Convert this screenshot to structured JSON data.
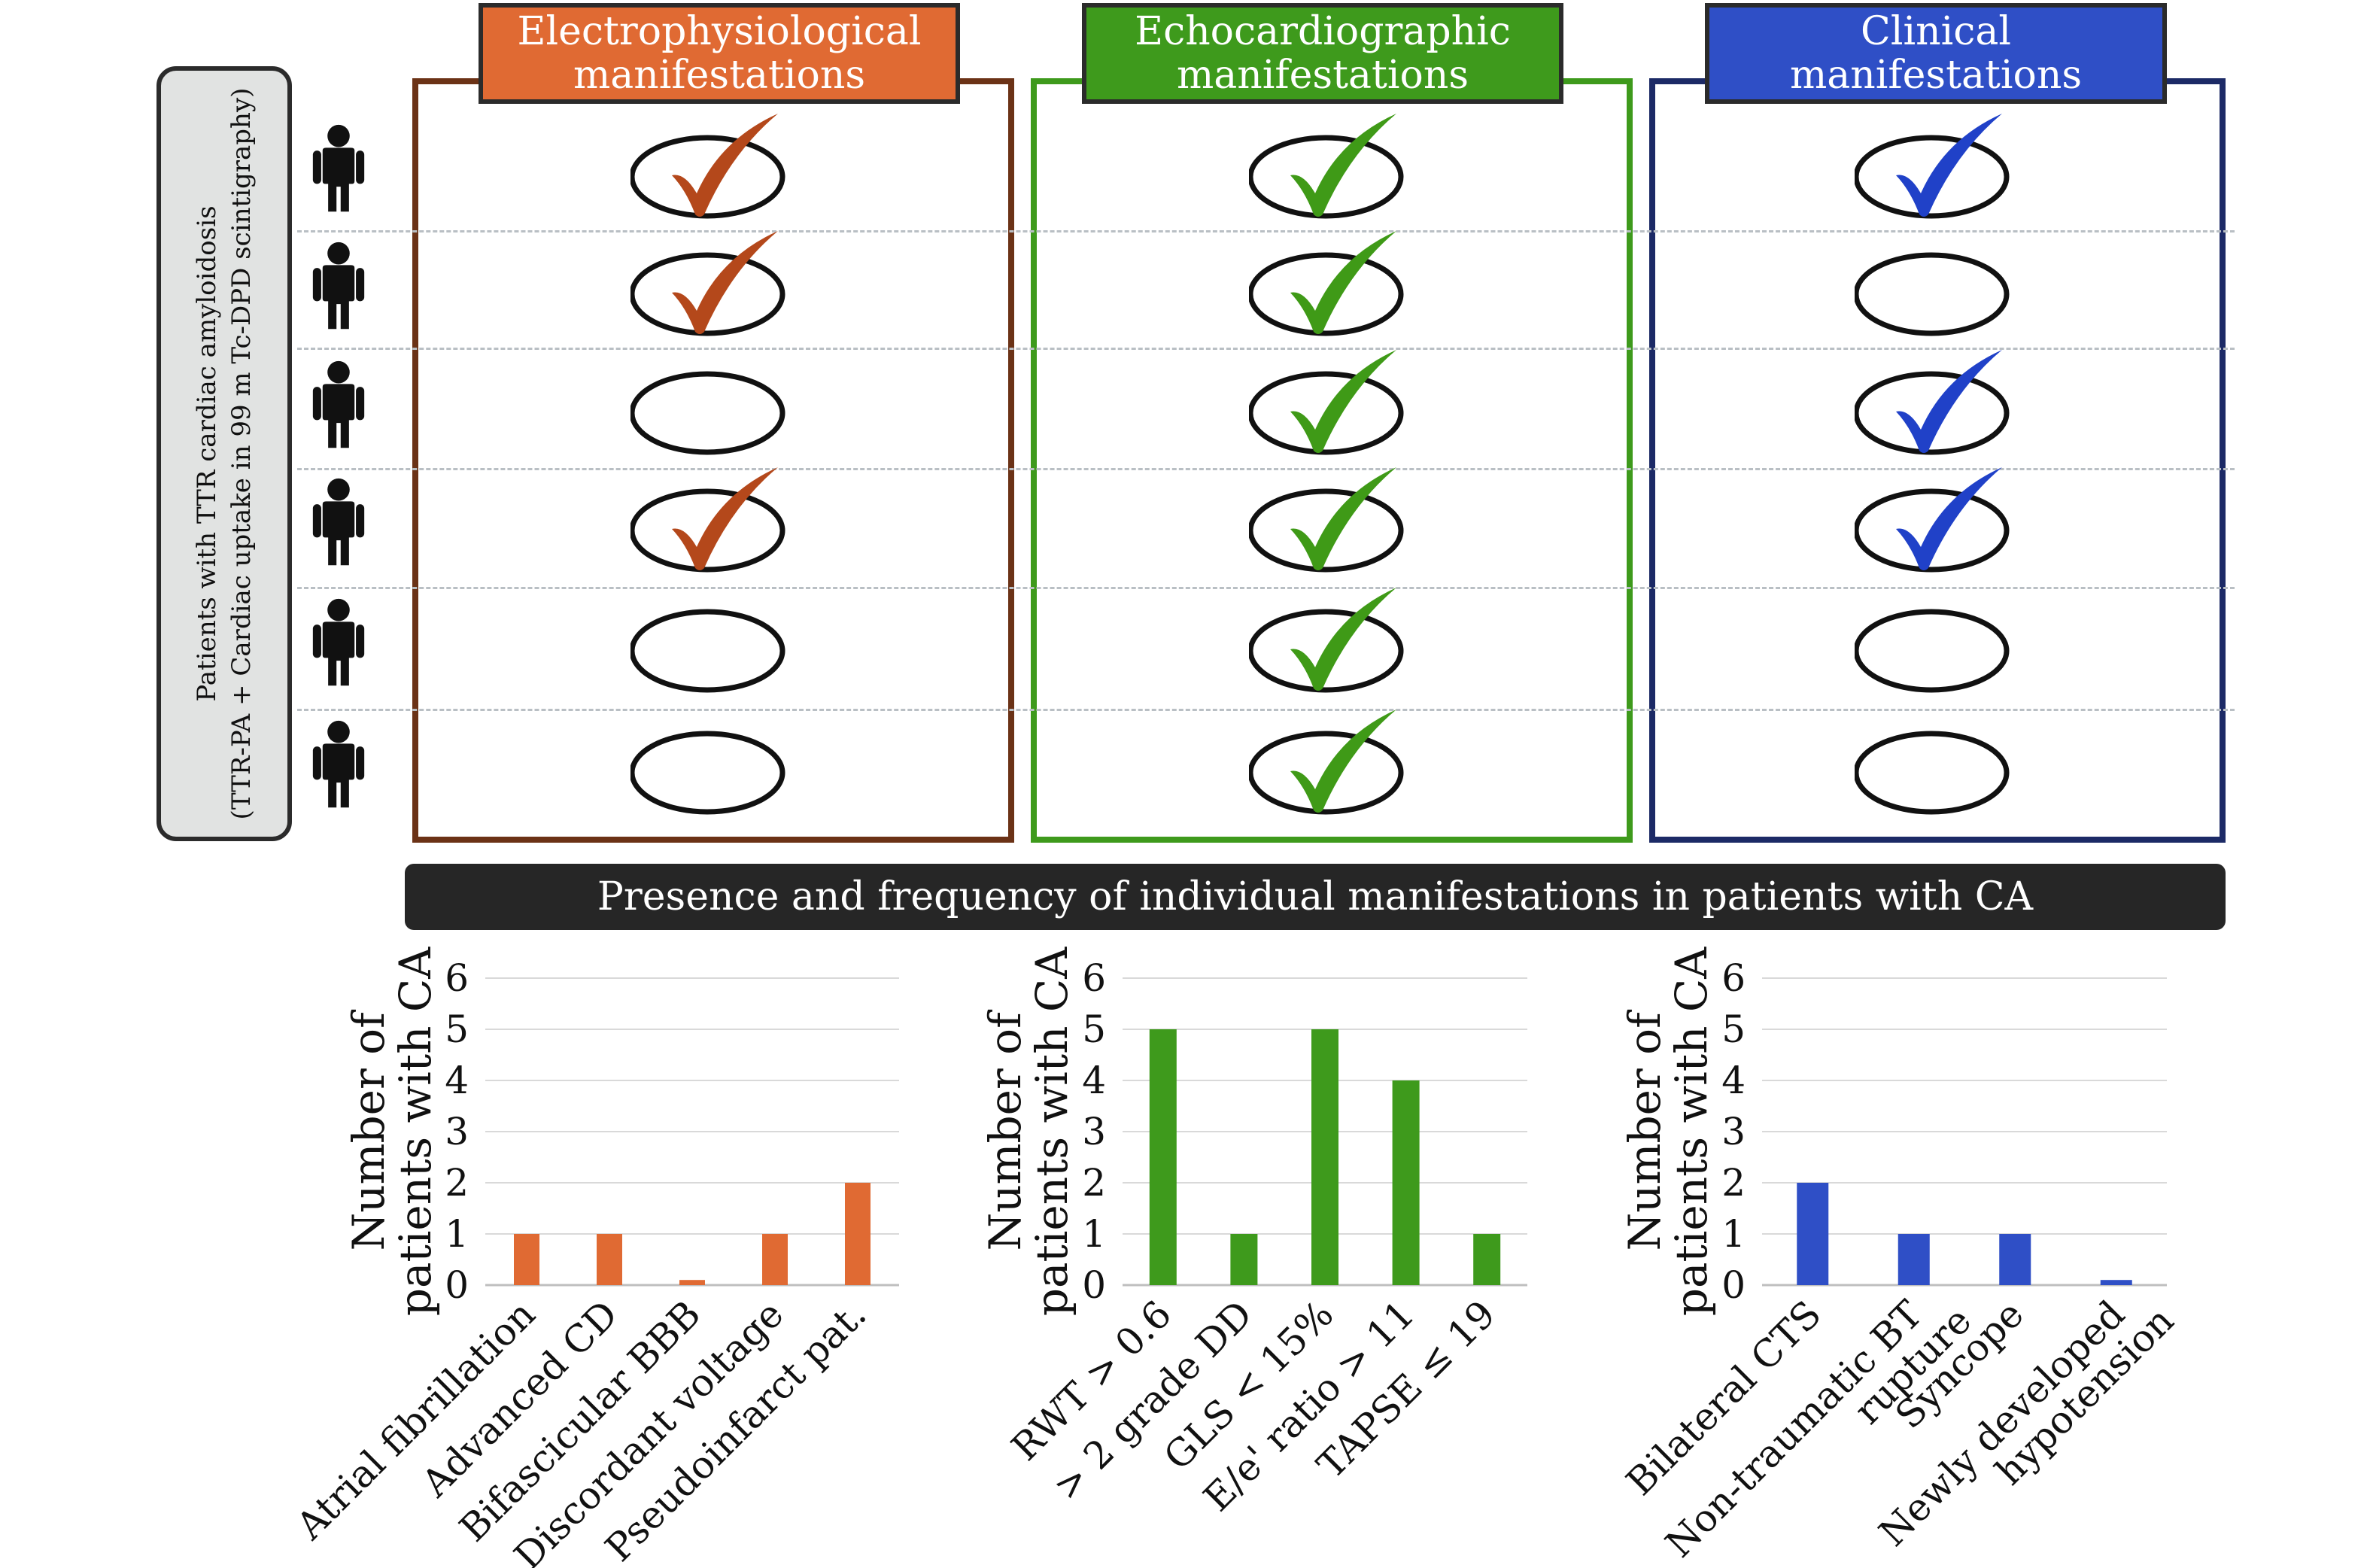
{
  "side_label": {
    "line1": "Patients with TTR cardiac amyloidosis",
    "line2": "(TTR-PA + Cardiac uptake in 99 m Tc-DPD scintigraphy)"
  },
  "banner": "Presence and frequency of individual manifestations in patients with CA",
  "colors": {
    "electro": "#e06a33",
    "electro_check": "#b4481b",
    "electro_border": "#6b3216",
    "echo": "#3e9a1c",
    "echo_check": "#3f9a17",
    "echo_border": "#3e9a1c",
    "clinical": "#2f4fc6",
    "clinical_check": "#2041c8",
    "clinical_border": "#1c2a66"
  },
  "panels": [
    {
      "id": "electro",
      "title_line1": "Electrophysiological",
      "title_line2": "manifestations",
      "checks": [
        true,
        true,
        false,
        true,
        false,
        false
      ]
    },
    {
      "id": "echo",
      "title_line1": "Echocardiographic",
      "title_line2": "manifestations",
      "checks": [
        true,
        true,
        true,
        true,
        true,
        true
      ]
    },
    {
      "id": "clinical",
      "title_line1": "Clinical manifestations",
      "title_line2": "",
      "checks": [
        true,
        false,
        true,
        true,
        false,
        false
      ]
    }
  ],
  "chart_data": [
    {
      "type": "bar",
      "categories": [
        "Atrial fibrillation",
        "Advanced CD",
        "Bifascicular BBB",
        "Discordant voltage",
        "Pseudoinfarct pat."
      ],
      "values": [
        1,
        1,
        0.1,
        1,
        2
      ],
      "ylabel_line1": "Number of",
      "ylabel_line2": "patients with CA",
      "ylim": [
        0,
        6
      ],
      "yticks": [
        "0",
        "1",
        "2",
        "3",
        "4",
        "5",
        "6"
      ],
      "color": "#e06a33",
      "grid": true
    },
    {
      "type": "bar",
      "categories": [
        "RWT > 0.6",
        "> 2 grade DD",
        "GLS < 15%",
        "E/e' ratio > 11",
        "TAPSE ≤ 19"
      ],
      "values": [
        5,
        1,
        5,
        4,
        1
      ],
      "ylabel_line1": "Number of",
      "ylabel_line2": "patients with CA",
      "ylim": [
        0,
        6
      ],
      "yticks": [
        "0",
        "1",
        "2",
        "3",
        "4",
        "5",
        "6"
      ],
      "color": "#3e9a1c",
      "grid": true
    },
    {
      "type": "bar",
      "categories": [
        "Bilateral CTS",
        "Non-traumatic BT rupture",
        "Syncope",
        "Newly developed hypotension"
      ],
      "category_lines": [
        [
          "Bilateral CTS"
        ],
        [
          "Non-traumatic BT",
          "rupture"
        ],
        [
          "Syncope"
        ],
        [
          "Newly developed",
          "hypotension"
        ]
      ],
      "values": [
        2,
        1,
        1,
        0.1
      ],
      "ylabel_line1": "Number of",
      "ylabel_line2": "patients with CA",
      "ylim": [
        0,
        6
      ],
      "yticks": [
        "0",
        "1",
        "2",
        "3",
        "4",
        "5",
        "6"
      ],
      "color": "#2f4fc6",
      "grid": true
    }
  ]
}
